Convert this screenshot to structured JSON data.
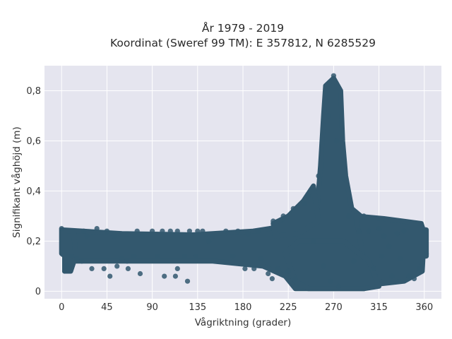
{
  "chart_data": {
    "type": "scatter",
    "title_lines": [
      "År 1979 - 2019",
      "Koordinat (Sweref 99 TM): E 357812, N 6285529"
    ],
    "xlabel": "Vågriktning (grader)",
    "ylabel": "Signifikant våghöjd (m)",
    "xlim": [
      -17,
      377
    ],
    "ylim": [
      -0.03,
      0.9
    ],
    "xticks": [
      0,
      45,
      90,
      135,
      180,
      225,
      270,
      315,
      360
    ],
    "xtick_labels": [
      "0",
      "45",
      "90",
      "135",
      "180",
      "225",
      "270",
      "315",
      "360"
    ],
    "yticks": [
      0,
      0.2,
      0.4,
      0.6,
      0.8
    ],
    "ytick_labels": [
      "0",
      "0,2",
      "0,4",
      "0,6",
      "0,8"
    ],
    "grid": true,
    "legend": "none",
    "series": [
      {
        "points": [
          [
            0,
            0.25
          ],
          [
            3,
            0.08
          ],
          [
            5,
            0.1
          ],
          [
            8,
            0.09
          ],
          [
            10,
            0.14
          ],
          [
            15,
            0.13
          ],
          [
            20,
            0.12
          ],
          [
            22,
            0.24
          ],
          [
            25,
            0.22
          ],
          [
            30,
            0.09
          ],
          [
            35,
            0.25
          ],
          [
            42,
            0.09
          ],
          [
            45,
            0.24
          ],
          [
            48,
            0.06
          ],
          [
            52,
            0.22
          ],
          [
            55,
            0.1
          ],
          [
            60,
            0.13
          ],
          [
            65,
            0.12
          ],
          [
            66,
            0.09
          ],
          [
            72,
            0.14
          ],
          [
            75,
            0.24
          ],
          [
            78,
            0.07
          ],
          [
            80,
            0.22
          ],
          [
            90,
            0.24
          ],
          [
            95,
            0.14
          ],
          [
            100,
            0.24
          ],
          [
            102,
            0.06
          ],
          [
            108,
            0.24
          ],
          [
            113,
            0.06
          ],
          [
            115,
            0.24
          ],
          [
            115,
            0.09
          ],
          [
            122,
            0.14
          ],
          [
            125,
            0.04
          ],
          [
            127,
            0.24
          ],
          [
            133,
            0.14
          ],
          [
            135,
            0.24
          ],
          [
            140,
            0.24
          ],
          [
            146,
            0.2
          ],
          [
            150,
            0.22
          ],
          [
            163,
            0.24
          ],
          [
            170,
            0.14
          ],
          [
            175,
            0.24
          ],
          [
            182,
            0.09
          ],
          [
            185,
            0.23
          ],
          [
            191,
            0.09
          ],
          [
            195,
            0.24
          ],
          [
            198,
            0.13
          ],
          [
            205,
            0.07
          ],
          [
            209,
            0.05
          ],
          [
            210,
            0.28
          ],
          [
            215,
            0.09
          ],
          [
            220,
            0.3
          ],
          [
            225,
            0.08
          ],
          [
            230,
            0.33
          ],
          [
            232,
            0.05
          ],
          [
            241,
            0.35
          ],
          [
            245,
            0.38
          ],
          [
            250,
            0.2
          ],
          [
            255,
            0.46
          ],
          [
            260,
            0.1
          ],
          [
            265,
            0.7
          ],
          [
            267,
            0.04
          ],
          [
            270,
            0.86
          ],
          [
            273,
            0.6
          ],
          [
            275,
            0.02
          ],
          [
            280,
            0.45
          ],
          [
            285,
            0.3
          ],
          [
            290,
            0.12
          ],
          [
            295,
            0.24
          ],
          [
            300,
            0.3
          ],
          [
            305,
            0.24
          ],
          [
            310,
            0.09
          ],
          [
            315,
            0.25
          ],
          [
            318,
            0.14
          ],
          [
            320,
            0.22
          ],
          [
            325,
            0.18
          ],
          [
            328,
            0.06
          ],
          [
            333,
            0.23
          ],
          [
            336,
            0.13
          ],
          [
            340,
            0.24
          ],
          [
            345,
            0.06
          ],
          [
            350,
            0.05
          ],
          [
            355,
            0.09
          ],
          [
            358,
            0.1
          ],
          [
            360,
            0.24
          ],
          [
            362,
            0.15
          ]
        ]
      }
    ],
    "point_color": "#33586e"
  }
}
